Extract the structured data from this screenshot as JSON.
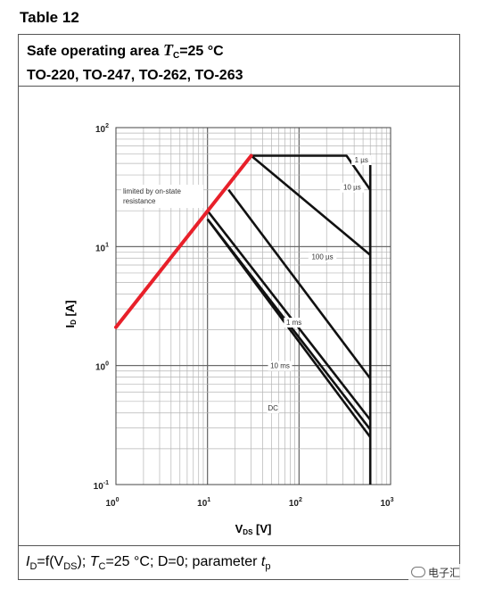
{
  "table_label": "Table 12",
  "header": {
    "line1_prefix": "Safe operating area ",
    "line1_var": "T",
    "line1_sub": "C",
    "line1_suffix": "=25 °C",
    "line2": "TO-220, TO-247, TO-262, TO-263"
  },
  "footer": {
    "id": "I",
    "id_sub": "D",
    "eq": "=f(V",
    "vds_sub": "DS",
    "close": "); ",
    "tc": "T",
    "tc_sub": "C",
    "rest": "=25 °C; D=0; parameter ",
    "tp": "t",
    "tp_sub": "p"
  },
  "watermark": "电子汇",
  "chart_data": {
    "type": "line",
    "x_scale": "log",
    "y_scale": "log",
    "xlim": [
      1,
      1000
    ],
    "ylim": [
      0.1,
      100
    ],
    "x_ticks": [
      {
        "value": 1,
        "mantissa": "10",
        "exp": "0"
      },
      {
        "value": 10,
        "mantissa": "10",
        "exp": "1"
      },
      {
        "value": 100,
        "mantissa": "10",
        "exp": "2"
      },
      {
        "value": 1000,
        "mantissa": "10",
        "exp": "3"
      }
    ],
    "y_ticks": [
      {
        "value": 0.1,
        "mantissa": "10",
        "exp": "-1"
      },
      {
        "value": 1,
        "mantissa": "10",
        "exp": "0"
      },
      {
        "value": 10,
        "mantissa": "10",
        "exp": "1"
      },
      {
        "value": 100,
        "mantissa": "10",
        "exp": "2"
      }
    ],
    "xlabel_main": "V",
    "xlabel_sub": "DS",
    "xlabel_unit": " [V]",
    "ylabel_main": "I",
    "ylabel_sub": "D",
    "ylabel_unit": " [A]",
    "grid": true,
    "limit_line": {
      "label_line1": "limited by on-state",
      "label_line2": "resistance",
      "color": "#e8202a",
      "x": [
        1,
        30
      ],
      "y": [
        2.1,
        58
      ]
    },
    "series": [
      {
        "name": "1 µs",
        "x": [
          30,
          330,
          600,
          600
        ],
        "y": [
          58,
          58,
          30,
          8.5
        ]
      },
      {
        "name": "10 µs",
        "x": [
          30,
          600,
          600
        ],
        "y": [
          58,
          8.5,
          8.5
        ]
      },
      {
        "name": "100 µs",
        "x": [
          17,
          600,
          600
        ],
        "y": [
          30,
          0.78,
          0.78
        ]
      },
      {
        "name": "1 ms",
        "x": [
          10,
          600,
          600
        ],
        "y": [
          20,
          0.35,
          0.35
        ]
      },
      {
        "name": "10 ms",
        "x": [
          10,
          600,
          600
        ],
        "y": [
          17,
          0.29,
          0.29
        ]
      },
      {
        "name": "DC",
        "x": [
          10,
          600
        ],
        "y": [
          17,
          0.25
        ]
      },
      {
        "name": "",
        "x": [
          600,
          600
        ],
        "y": [
          58,
          0.1
        ]
      }
    ],
    "curve_labels": [
      {
        "text": "1 µs",
        "x": 480,
        "y": 51
      },
      {
        "text": "10 µs",
        "x": 380,
        "y": 30
      },
      {
        "text": "100 µs",
        "x": 180,
        "y": 7.8
      },
      {
        "text": "1 ms",
        "x": 88,
        "y": 2.2
      },
      {
        "text": "10 ms",
        "x": 62,
        "y": 0.95
      },
      {
        "text": "DC",
        "x": 52,
        "y": 0.42
      }
    ],
    "line_color": "#111111"
  }
}
